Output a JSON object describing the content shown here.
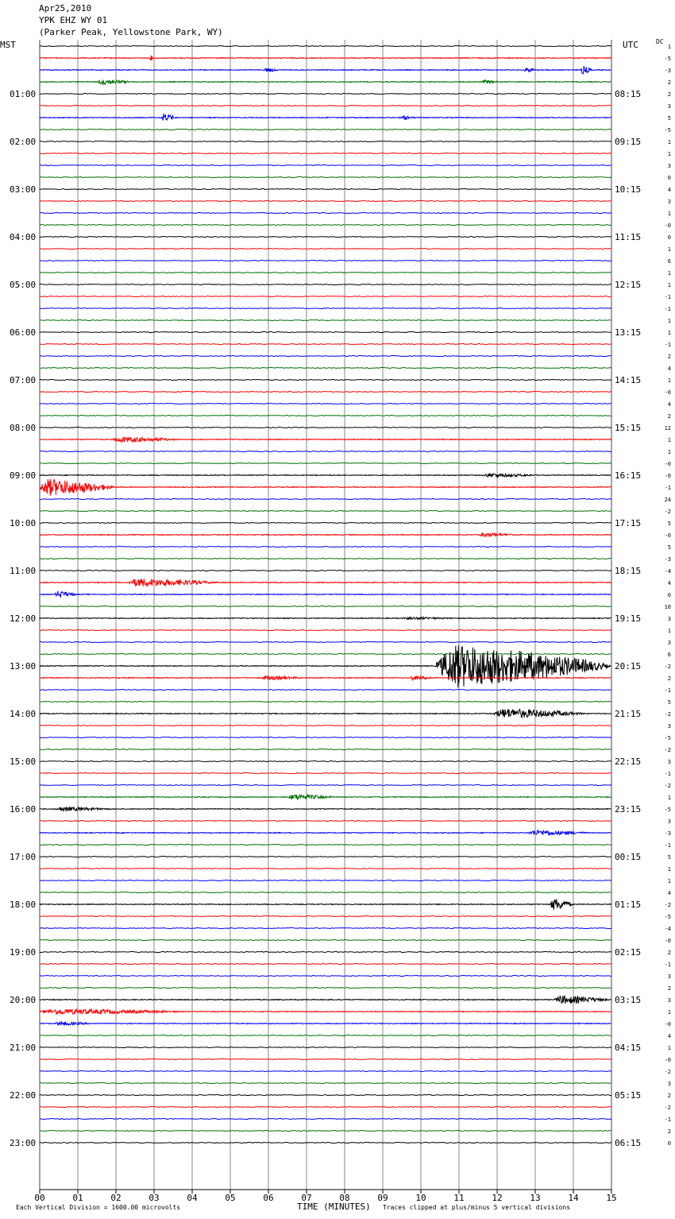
{
  "header": {
    "date": "Apr25,2010",
    "station": "YPK EHZ WY 01",
    "location": "(Parker Peak, Yellowstone Park, WY)"
  },
  "left_axis_title": "MST",
  "right_axis_title": "UTC",
  "dc_header": "DC",
  "footer": {
    "scale_note": "Each Vertical Division = 1600.00 microvolts",
    "xlabel": "TIME (MINUTES)",
    "clip_note": "Traces clipped at plus/minus 5 vertical divisions"
  },
  "colors": {
    "black": "#000000",
    "red": "#ff0000",
    "blue": "#0000ff",
    "green": "#007000",
    "grid": "#888888"
  },
  "chart_data": {
    "type": "line",
    "title": "YPK EHZ WY 01",
    "xlabel": "TIME (MINUTES)",
    "xlim": [
      0,
      15
    ],
    "x_ticks": [
      "00",
      "01",
      "02",
      "03",
      "04",
      "05",
      "06",
      "07",
      "08",
      "09",
      "10",
      "11",
      "12",
      "13",
      "14",
      "15"
    ],
    "trace_color_cycle": [
      "black",
      "red",
      "blue",
      "green"
    ],
    "trace_count": 93,
    "mst_labels": [
      "01:00",
      "02:00",
      "03:00",
      "04:00",
      "05:00",
      "06:00",
      "07:00",
      "08:00",
      "09:00",
      "10:00",
      "11:00",
      "12:00",
      "13:00",
      "14:00",
      "15:00",
      "16:00",
      "17:00",
      "18:00",
      "19:00",
      "20:00",
      "21:00",
      "22:00",
      "23:00"
    ],
    "utc_labels": [
      "08:15",
      "09:15",
      "10:15",
      "11:15",
      "12:15",
      "13:15",
      "14:15",
      "15:15",
      "16:15",
      "17:15",
      "18:15",
      "19:15",
      "20:15",
      "21:15",
      "22:15",
      "23:15",
      "00:15",
      "01:15",
      "02:15",
      "03:15",
      "04:15",
      "05:15",
      "06:15"
    ],
    "dc_offsets": [
      "1",
      "-5",
      "-3",
      "2",
      "2",
      "3",
      "5",
      "-5",
      "1",
      "1",
      "3",
      "0",
      "4",
      "3",
      "1",
      "-0",
      "0",
      "1",
      "6",
      "1",
      "1",
      "-1",
      "-1",
      "1",
      "1",
      "-1",
      "2",
      "4",
      "1",
      "-0",
      "4",
      "2",
      "12",
      "1",
      "1",
      "-0",
      "-0",
      "-1",
      "24",
      "-2",
      "5",
      "-0",
      "5",
      "-3",
      "-4",
      "4",
      "0",
      "10",
      "3",
      "1",
      "3",
      "6",
      "-2",
      "2",
      "-1",
      "5",
      "-2",
      "3",
      "-5",
      "-2",
      "3",
      "-1",
      "-2",
      "1",
      "-5",
      "3",
      "-3",
      "-1",
      "5",
      "1",
      "1",
      "4",
      "-2",
      "-5",
      "-4",
      "-0",
      "2",
      "-1",
      "3",
      "2",
      "3",
      "1",
      "-0",
      "4",
      "1",
      "-0",
      "-2",
      "3",
      "2",
      "-2",
      "-1",
      "2",
      "0"
    ],
    "events": [
      {
        "trace": 1,
        "start_min": 2.9,
        "end_min": 3.0,
        "amp": 4
      },
      {
        "trace": 2,
        "start_min": 5.9,
        "end_min": 6.3,
        "amp": 3
      },
      {
        "trace": 2,
        "start_min": 12.7,
        "end_min": 13.2,
        "amp": 3
      },
      {
        "trace": 2,
        "start_min": 14.2,
        "end_min": 14.5,
        "amp": 6
      },
      {
        "trace": 3,
        "start_min": 1.5,
        "end_min": 2.5,
        "amp": 4
      },
      {
        "trace": 3,
        "start_min": 11.6,
        "end_min": 12.1,
        "amp": 3
      },
      {
        "trace": 6,
        "start_min": 3.2,
        "end_min": 3.6,
        "amp": 6
      },
      {
        "trace": 6,
        "start_min": 9.5,
        "end_min": 9.9,
        "amp": 3
      },
      {
        "trace": 33,
        "start_min": 1.9,
        "end_min": 3.8,
        "amp": 4
      },
      {
        "trace": 36,
        "start_min": 11.6,
        "end_min": 13.2,
        "amp": 3
      },
      {
        "trace": 37,
        "start_min": 0.0,
        "end_min": 2.0,
        "amp": 12
      },
      {
        "trace": 41,
        "start_min": 11.5,
        "end_min": 12.6,
        "amp": 3
      },
      {
        "trace": 45,
        "start_min": 2.3,
        "end_min": 4.8,
        "amp": 6
      },
      {
        "trace": 46,
        "start_min": 0.4,
        "end_min": 1.0,
        "amp": 5
      },
      {
        "trace": 48,
        "start_min": 9.5,
        "end_min": 11.0,
        "amp": 2
      },
      {
        "trace": 52,
        "start_min": 10.4,
        "end_min": 15.0,
        "amp": 30
      },
      {
        "trace": 53,
        "start_min": 5.8,
        "end_min": 7.0,
        "amp": 3
      },
      {
        "trace": 53,
        "start_min": 9.7,
        "end_min": 10.4,
        "amp": 3
      },
      {
        "trace": 56,
        "start_min": 11.9,
        "end_min": 14.4,
        "amp": 7
      },
      {
        "trace": 63,
        "start_min": 6.5,
        "end_min": 7.8,
        "amp": 4
      },
      {
        "trace": 64,
        "start_min": 0.4,
        "end_min": 2.0,
        "amp": 3
      },
      {
        "trace": 66,
        "start_min": 12.8,
        "end_min": 14.5,
        "amp": 4
      },
      {
        "trace": 72,
        "start_min": 13.4,
        "end_min": 14.0,
        "amp": 9
      },
      {
        "trace": 80,
        "start_min": 13.5,
        "end_min": 15.0,
        "amp": 6
      },
      {
        "trace": 81,
        "start_min": 0.0,
        "end_min": 4.0,
        "amp": 4
      },
      {
        "trace": 82,
        "start_min": 0.4,
        "end_min": 1.4,
        "amp": 3
      }
    ]
  }
}
